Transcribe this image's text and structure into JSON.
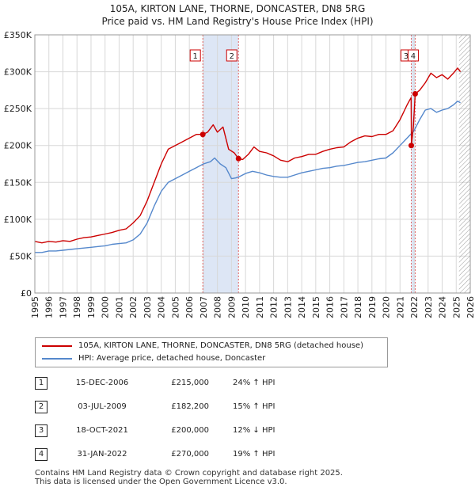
{
  "title": "105A, KIRTON LANE, THORNE, DONCASTER, DN8 5RG",
  "subtitle": "Price paid vs. HM Land Registry's House Price Index (HPI)",
  "chart_data": {
    "type": "line",
    "title": "105A, KIRTON LANE, THORNE, DONCASTER, DN8 5RG",
    "subtitle": "Price paid vs. HM Land Registry's House Price Index (HPI)",
    "xlabel": "",
    "ylabel": "",
    "xlim": [
      1995,
      2026
    ],
    "ylim": [
      0,
      350000
    ],
    "y_ticks": [
      {
        "value": 0,
        "label": "£0"
      },
      {
        "value": 50000,
        "label": "£50K"
      },
      {
        "value": 100000,
        "label": "£100K"
      },
      {
        "value": 150000,
        "label": "£150K"
      },
      {
        "value": 200000,
        "label": "£200K"
      },
      {
        "value": 250000,
        "label": "£250K"
      },
      {
        "value": 300000,
        "label": "£300K"
      },
      {
        "value": 350000,
        "label": "£350K"
      }
    ],
    "x_ticks": [
      "1995",
      "1996",
      "1997",
      "1998",
      "1999",
      "2000",
      "2001",
      "2002",
      "2003",
      "2004",
      "2005",
      "2006",
      "2007",
      "2008",
      "2009",
      "2010",
      "2011",
      "2012",
      "2013",
      "2014",
      "2015",
      "2016",
      "2017",
      "2018",
      "2019",
      "2020",
      "2021",
      "2022",
      "2023",
      "2024",
      "2025",
      "2026"
    ],
    "grid": true,
    "shaded_periods": [
      [
        2006.96,
        2009.5
      ],
      [
        2021.8,
        2022.08
      ]
    ],
    "future_hatch_from": 2025.2,
    "series": [
      {
        "name": "105A, KIRTON LANE, THORNE, DONCASTER, DN8 5RG (detached house)",
        "color": "#cc0000",
        "x": [
          1995.0,
          1995.5,
          1996.0,
          1996.5,
          1997.0,
          1997.5,
          1998.0,
          1998.5,
          1999.0,
          1999.5,
          2000.0,
          2000.5,
          2001.0,
          2001.5,
          2002.0,
          2002.5,
          2003.0,
          2003.5,
          2004.0,
          2004.5,
          2005.0,
          2005.5,
          2006.0,
          2006.5,
          2006.96,
          2007.3,
          2007.7,
          2008.0,
          2008.4,
          2008.8,
          2009.2,
          2009.5,
          2009.8,
          2010.2,
          2010.6,
          2011.0,
          2011.5,
          2012.0,
          2012.5,
          2013.0,
          2013.5,
          2014.0,
          2014.5,
          2015.0,
          2015.5,
          2016.0,
          2016.5,
          2017.0,
          2017.5,
          2018.0,
          2018.5,
          2019.0,
          2019.5,
          2020.0,
          2020.5,
          2021.0,
          2021.5,
          2021.79,
          2021.81,
          2021.95,
          2022.08,
          2022.4,
          2022.8,
          2023.2,
          2023.6,
          2024.0,
          2024.4,
          2024.8,
          2025.1,
          2025.3
        ],
        "values": [
          70000,
          68000,
          70000,
          69000,
          71000,
          70000,
          73000,
          75000,
          76000,
          78000,
          80000,
          82000,
          85000,
          87000,
          95000,
          105000,
          125000,
          150000,
          175000,
          195000,
          200000,
          205000,
          210000,
          215000,
          215000,
          218000,
          228000,
          218000,
          225000,
          195000,
          190000,
          182200,
          181000,
          188000,
          198000,
          192000,
          190000,
          186000,
          180000,
          178000,
          183000,
          185000,
          188000,
          188000,
          192000,
          195000,
          197000,
          198000,
          205000,
          210000,
          213000,
          212000,
          215000,
          215000,
          220000,
          235000,
          255000,
          265000,
          200000,
          225000,
          270000,
          275000,
          285000,
          298000,
          292000,
          296000,
          290000,
          298000,
          305000,
          300000
        ]
      },
      {
        "name": "HPI: Average price, detached house, Doncaster",
        "color": "#5588cc",
        "x": [
          1995.0,
          1995.5,
          1996.0,
          1996.5,
          1997.0,
          1997.5,
          1998.0,
          1998.5,
          1999.0,
          1999.5,
          2000.0,
          2000.5,
          2001.0,
          2001.5,
          2002.0,
          2002.5,
          2003.0,
          2003.5,
          2004.0,
          2004.5,
          2005.0,
          2005.5,
          2006.0,
          2006.5,
          2007.0,
          2007.5,
          2007.8,
          2008.2,
          2008.6,
          2009.0,
          2009.3,
          2009.6,
          2010.0,
          2010.5,
          2011.0,
          2011.5,
          2012.0,
          2012.5,
          2013.0,
          2013.5,
          2014.0,
          2014.5,
          2015.0,
          2015.5,
          2016.0,
          2016.5,
          2017.0,
          2017.5,
          2018.0,
          2018.5,
          2019.0,
          2019.5,
          2020.0,
          2020.5,
          2021.0,
          2021.5,
          2022.0,
          2022.4,
          2022.8,
          2023.2,
          2023.6,
          2024.0,
          2024.4,
          2024.8,
          2025.1,
          2025.3
        ],
        "values": [
          55000,
          55000,
          57000,
          57000,
          58000,
          59000,
          60000,
          61000,
          62000,
          63000,
          64000,
          66000,
          67000,
          68000,
          72000,
          80000,
          95000,
          118000,
          138000,
          150000,
          155000,
          160000,
          165000,
          170000,
          175000,
          178000,
          183000,
          175000,
          170000,
          155000,
          156000,
          158000,
          162000,
          165000,
          163000,
          160000,
          158000,
          157000,
          157000,
          160000,
          163000,
          165000,
          167000,
          169000,
          170000,
          172000,
          173000,
          175000,
          177000,
          178000,
          180000,
          182000,
          183000,
          190000,
          200000,
          210000,
          220000,
          235000,
          248000,
          250000,
          245000,
          248000,
          250000,
          255000,
          260000,
          258000
        ]
      }
    ],
    "sales": [
      {
        "num": "1",
        "x": 2006.96,
        "value": 215000
      },
      {
        "num": "2",
        "x": 2009.5,
        "value": 182200
      },
      {
        "num": "3",
        "x": 2021.8,
        "value": 200000
      },
      {
        "num": "4",
        "x": 2022.08,
        "value": 270000
      }
    ]
  },
  "legend": {
    "items": [
      {
        "label": "105A, KIRTON LANE, THORNE, DONCASTER, DN8 5RG (detached house)",
        "color": "#cc0000"
      },
      {
        "label": "HPI: Average price, detached house, Doncaster",
        "color": "#5588cc"
      }
    ]
  },
  "table": {
    "rows": [
      {
        "num": "1",
        "date": "15-DEC-2006",
        "price": "£215,000",
        "hpi": "24% ↑ HPI"
      },
      {
        "num": "2",
        "date": "03-JUL-2009",
        "price": "£182,200",
        "hpi": "15% ↑ HPI"
      },
      {
        "num": "3",
        "date": "18-OCT-2021",
        "price": "£200,000",
        "hpi": "12% ↓ HPI"
      },
      {
        "num": "4",
        "date": "31-JAN-2022",
        "price": "£270,000",
        "hpi": "19% ↑ HPI"
      }
    ]
  },
  "footer": {
    "line1": "Contains HM Land Registry data © Crown copyright and database right 2025.",
    "line2": "This data is licensed under the Open Government Licence v3.0."
  }
}
